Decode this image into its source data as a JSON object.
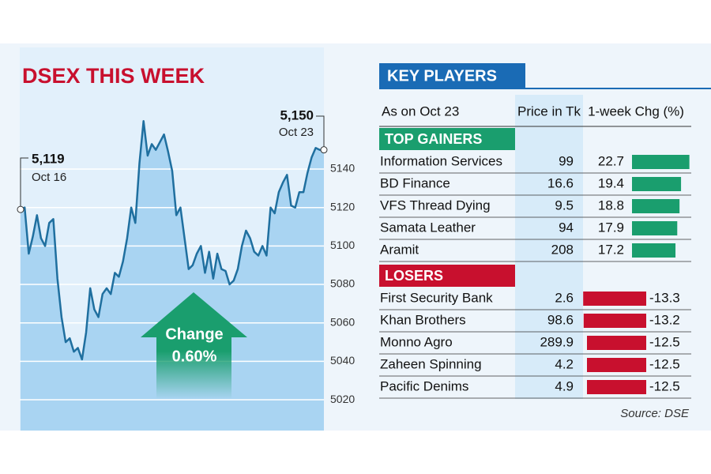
{
  "chart_data": [
    {
      "type": "line",
      "title": "DSEX THIS WEEK",
      "color": "#1f6f9f",
      "fill": "#a9d4f2",
      "values": [
        5119,
        5120,
        5096,
        5105,
        5116,
        5104,
        5100,
        5112,
        5114,
        5083,
        5063,
        5050,
        5052,
        5045,
        5047,
        5041,
        5055,
        5078,
        5067,
        5063,
        5075,
        5078,
        5075,
        5086,
        5084,
        5092,
        5104,
        5120,
        5112,
        5143,
        5165,
        5147,
        5153,
        5150,
        5154,
        5158,
        5149,
        5139,
        5116,
        5120,
        5104,
        5088,
        5090,
        5096,
        5100,
        5086,
        5097,
        5083,
        5096,
        5088,
        5087,
        5080,
        5082,
        5088,
        5100,
        5108,
        5104,
        5097,
        5095,
        5100,
        5095,
        5120,
        5117,
        5128,
        5133,
        5137,
        5121,
        5120,
        5128,
        5128,
        5138,
        5146,
        5151,
        5150,
        5150
      ],
      "ylim": [
        5004,
        5200
      ],
      "yticks": [
        5020,
        5040,
        5060,
        5080,
        5100,
        5120,
        5140
      ],
      "grid": true,
      "start_label": "5,119",
      "start_date": "Oct 16",
      "end_label": "5,150",
      "end_date": "Oct 23",
      "change_label": "Change",
      "change_value": "0.60%"
    },
    {
      "type": "bar",
      "title": "KEY PLAYERS",
      "subtitle": "As on Oct 23",
      "columns": [
        "Price in Tk",
        "1-week Chg (%)"
      ],
      "groups": [
        {
          "name": "TOP GAINERS",
          "color": "#1a9e6e",
          "rows": [
            {
              "name": "Information Services",
              "price": 99,
              "change": 22.7
            },
            {
              "name": "BD Finance",
              "price": 16.6,
              "change": 19.4
            },
            {
              "name": "VFS Thread Dying",
              "price": 9.5,
              "change": 18.8
            },
            {
              "name": "Samata Leather",
              "price": 94,
              "change": 17.9
            },
            {
              "name": "Aramit",
              "price": 208,
              "change": 17.2
            }
          ]
        },
        {
          "name": "LOSERS",
          "color": "#c8102e",
          "rows": [
            {
              "name": "First Security Bank",
              "price": 2.6,
              "change": -13.3
            },
            {
              "name": "Khan Brothers",
              "price": 98.6,
              "change": -13.2
            },
            {
              "name": "Monno Agro",
              "price": 289.9,
              "change": -12.5
            },
            {
              "name": "Zaheen Spinning",
              "price": 4.2,
              "change": -12.5
            },
            {
              "name": "Pacific Denims",
              "price": 4.9,
              "change": -12.5
            }
          ]
        }
      ],
      "source": "Source: DSE"
    }
  ]
}
